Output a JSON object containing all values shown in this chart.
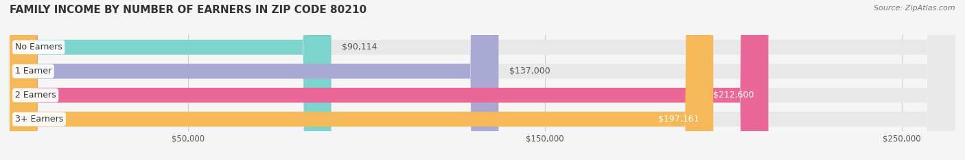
{
  "title": "FAMILY INCOME BY NUMBER OF EARNERS IN ZIP CODE 80210",
  "source": "Source: ZipAtlas.com",
  "categories": [
    "No Earners",
    "1 Earner",
    "2 Earners",
    "3+ Earners"
  ],
  "values": [
    90114,
    137000,
    212600,
    197161
  ],
  "labels": [
    "$90,114",
    "$137,000",
    "$212,600",
    "$197,161"
  ],
  "bar_colors": [
    "#7DD4CE",
    "#A9A9D4",
    "#E96898",
    "#F5B95A"
  ],
  "label_colors": [
    "#555555",
    "#555555",
    "#ffffff",
    "#ffffff"
  ],
  "xlim": [
    0,
    265000
  ],
  "xticks": [
    50000,
    150000,
    250000
  ],
  "xticklabels": [
    "$50,000",
    "$150,000",
    "$250,000"
  ],
  "background_color": "#f5f5f5",
  "bar_background_color": "#e8e8e8",
  "title_fontsize": 11,
  "source_fontsize": 8,
  "label_fontsize": 9,
  "category_fontsize": 9,
  "bar_height": 0.62
}
